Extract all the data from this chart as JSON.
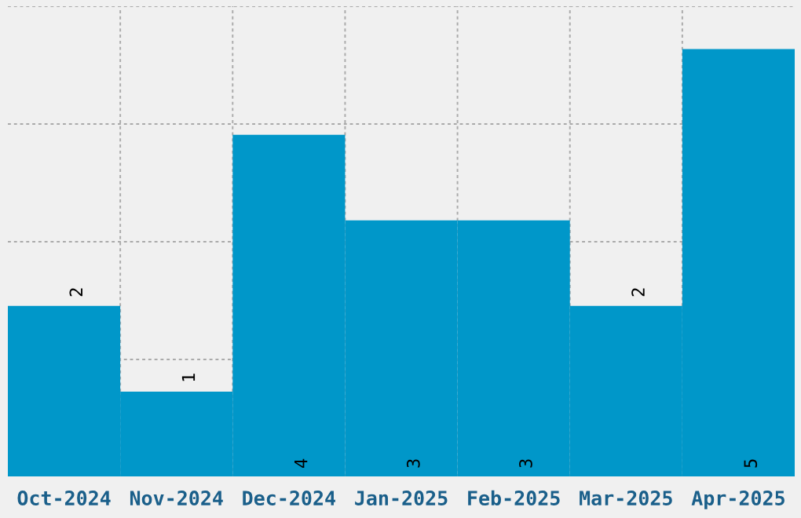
{
  "chart_data": {
    "type": "bar",
    "categories": [
      "Oct-2024",
      "Nov-2024",
      "Dec-2024",
      "Jan-2025",
      "Feb-2025",
      "Mar-2025",
      "Apr-2025"
    ],
    "values": [
      2,
      1,
      4,
      3,
      3,
      2,
      5
    ],
    "color": "#0097c9",
    "ylim": [
      0,
      5.5
    ],
    "yticks": [
      {
        "value": 0,
        "label": null
      },
      {
        "value": 1.375,
        "label": null
      },
      {
        "value": 2.75,
        "label": null
      },
      {
        "value": 4.125,
        "label": null
      },
      {
        "value": 5.5,
        "label": null
      }
    ],
    "tick_labels": "x",
    "grid": true,
    "data_labels": true
  }
}
